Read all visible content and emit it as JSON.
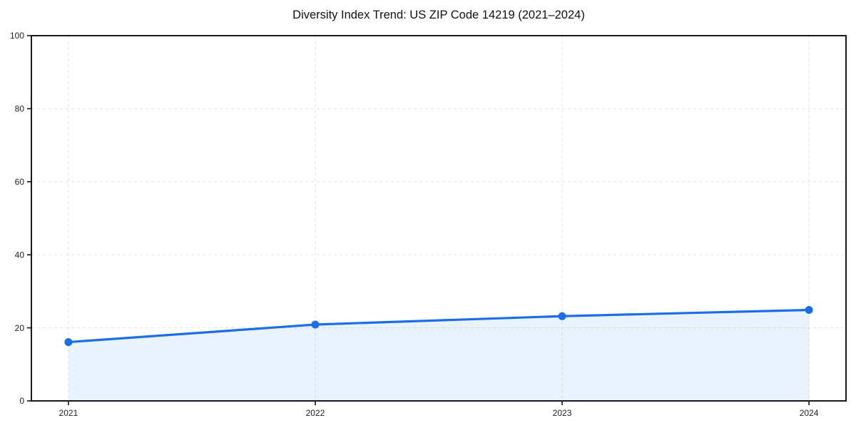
{
  "chart_data": {
    "type": "area",
    "title": "Diversity Index Trend: US ZIP Code 14219 (2021–2024)",
    "x": [
      2021,
      2022,
      2023,
      2024
    ],
    "xtick_labels": [
      "2021",
      "2022",
      "2023",
      "2024"
    ],
    "series": [
      {
        "name": "Diversity Index",
        "values": [
          16.1,
          20.9,
          23.2,
          24.9
        ]
      }
    ],
    "xlabel": "",
    "ylabel": "",
    "ylim": [
      0,
      100
    ],
    "yticks": [
      0,
      20,
      40,
      60,
      80,
      100
    ],
    "xlim": [
      2020.85,
      2024.15
    ],
    "grid": true,
    "grid_style": "dashed",
    "legend_position": "none",
    "line_color": "#1a6ee8",
    "marker_color": "#1a6ee8",
    "fill_color": "#1a6ee8",
    "fill_opacity": 0.09,
    "grid_color": "#e1e1e1",
    "spine_color": "#000000",
    "tick_color": "#222222",
    "title_color": "#111111"
  }
}
